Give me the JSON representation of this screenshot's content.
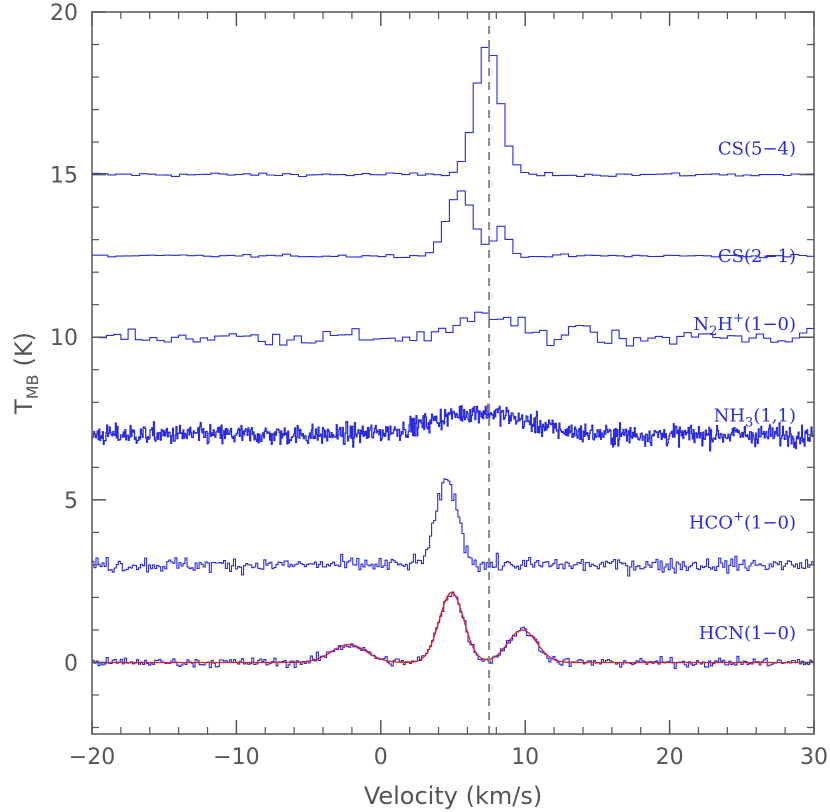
{
  "chart_data": {
    "type": "line",
    "xlabel": "Velocity (km/s)",
    "ylabel": "T",
    "ylabel_sub": "MB",
    "ylabel_unit": "(K)",
    "xlim": [
      -20,
      30
    ],
    "ylim": [
      -2.2,
      20
    ],
    "x_ticks": [
      -20,
      -10,
      0,
      10,
      20,
      30
    ],
    "y_ticks": [
      0,
      5,
      10,
      15,
      20
    ],
    "reference_line_x": 7.5,
    "grid": false,
    "colors": {
      "spectrum": "#2a2ae0",
      "fit": "#e02020",
      "reference": "#888888",
      "axes": "#555555"
    },
    "series": [
      {
        "name_main": "CS(5−4)",
        "name_sup": "",
        "name_sub": "",
        "name_tail": "",
        "baseline": 15.0,
        "noise": 0.04,
        "channel_width": 0.55,
        "components": [
          {
            "center": 7.4,
            "amplitude": 4.0,
            "sigma": 0.85
          }
        ]
      },
      {
        "name_main": "CS(2−1)",
        "name_sup": "",
        "name_sub": "",
        "name_tail": "",
        "baseline": 12.5,
        "noise": 0.03,
        "channel_width": 0.55,
        "components": [
          {
            "center": 5.5,
            "amplitude": 2.0,
            "sigma": 0.9
          },
          {
            "center": 8.4,
            "amplitude": 0.9,
            "sigma": 0.45
          }
        ]
      },
      {
        "name_main": "N",
        "name_sub": "2",
        "name_mid": "H",
        "name_sup": "+",
        "name_tail": "(1−0)",
        "baseline": 10.0,
        "noise": 0.18,
        "channel_width": 0.5,
        "components": [
          {
            "center": 7.5,
            "amplitude": 0.7,
            "sigma": 1.6
          },
          {
            "center": 13.8,
            "amplitude": 0.5,
            "sigma": 0.5
          }
        ]
      },
      {
        "name_main": "NH",
        "name_sub": "3",
        "name_mid": "",
        "name_sup": "",
        "name_tail": "(1,1)",
        "baseline": 7.0,
        "noise": 0.22,
        "channel_width": 0.06,
        "components": [
          {
            "center": 6.8,
            "amplitude": 0.7,
            "sigma": 3.2
          }
        ]
      },
      {
        "name_main": "HCO",
        "name_sub": "",
        "name_mid": "",
        "name_sup": "+",
        "name_tail": "(1−0)",
        "baseline": 3.0,
        "noise": 0.16,
        "channel_width": 0.14,
        "components": [
          {
            "center": 4.6,
            "amplitude": 2.6,
            "sigma": 0.75
          }
        ]
      },
      {
        "name_main": "HCN(1−0)",
        "name_sub": "",
        "name_mid": "",
        "name_sup": "",
        "name_tail": "",
        "baseline": 0.0,
        "noise": 0.1,
        "channel_width": 0.14,
        "components": [
          {
            "center": -2.2,
            "amplitude": 0.55,
            "sigma": 1.2
          },
          {
            "center": 4.9,
            "amplitude": 2.15,
            "sigma": 0.85
          },
          {
            "center": 9.8,
            "amplitude": 1.0,
            "sigma": 1.0
          }
        ],
        "fit": true
      }
    ]
  }
}
